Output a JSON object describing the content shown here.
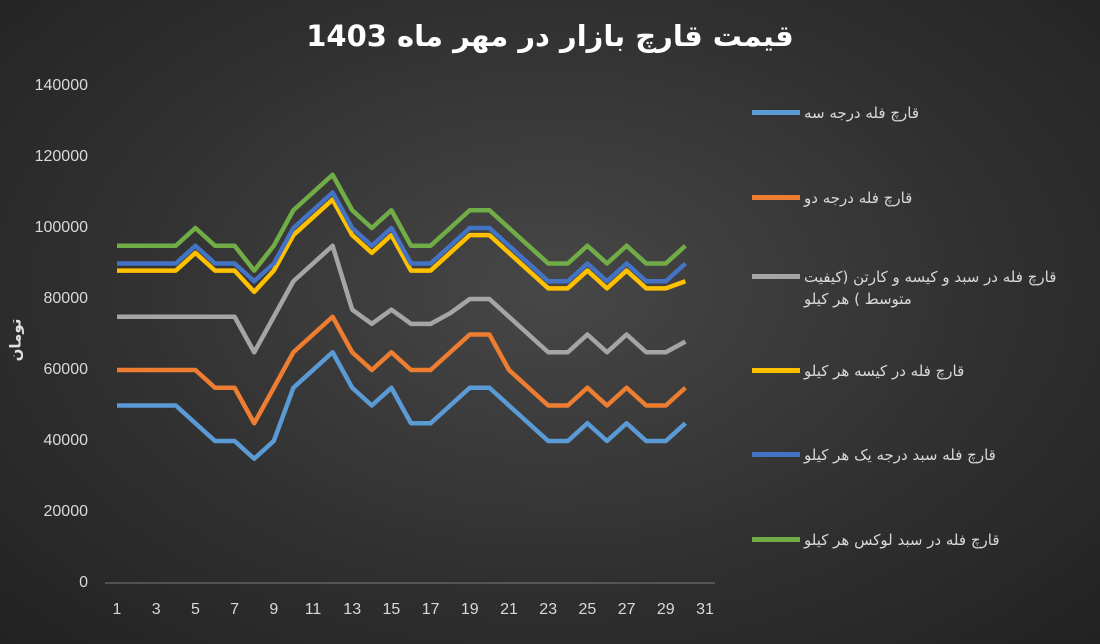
{
  "chart_data": {
    "type": "line",
    "title": "قیمت قارچ بازار در مهر ماه 1403",
    "y_label": "تومان",
    "grid": false,
    "legend_position": "right",
    "x": [
      1,
      2,
      3,
      4,
      5,
      6,
      7,
      8,
      9,
      10,
      11,
      12,
      13,
      14,
      15,
      16,
      17,
      18,
      19,
      20,
      21,
      22,
      23,
      24,
      25,
      26,
      27,
      28,
      29,
      30
    ],
    "xlim": [
      1,
      31
    ],
    "xticks": [
      1,
      3,
      5,
      7,
      9,
      11,
      13,
      15,
      17,
      19,
      21,
      23,
      25,
      27,
      29,
      31
    ],
    "ylim": [
      0,
      140000
    ],
    "yticks": [
      0,
      20000,
      40000,
      60000,
      80000,
      100000,
      120000,
      140000
    ],
    "series": [
      {
        "name": "قارچ فله درجه سه",
        "color": "#5b9bd5",
        "values": [
          50000,
          50000,
          50000,
          50000,
          45000,
          40000,
          40000,
          35000,
          40000,
          55000,
          60000,
          65000,
          55000,
          50000,
          55000,
          45000,
          45000,
          50000,
          55000,
          55000,
          50000,
          45000,
          40000,
          40000,
          45000,
          40000,
          45000,
          40000,
          40000,
          45000
        ]
      },
      {
        "name": "قارچ فله درجه دو",
        "color": "#ed7d31",
        "values": [
          60000,
          60000,
          60000,
          60000,
          60000,
          55000,
          55000,
          45000,
          55000,
          65000,
          70000,
          75000,
          65000,
          60000,
          65000,
          60000,
          60000,
          65000,
          70000,
          70000,
          60000,
          55000,
          50000,
          50000,
          55000,
          50000,
          55000,
          50000,
          50000,
          55000
        ]
      },
      {
        "name": "قارچ فله در سبد و کیسه و کارتن (کیفیت متوسط ) هر کیلو",
        "color": "#a5a5a5",
        "values": [
          75000,
          75000,
          75000,
          75000,
          75000,
          75000,
          75000,
          65000,
          75000,
          85000,
          90000,
          95000,
          77000,
          73000,
          77000,
          73000,
          73000,
          76000,
          80000,
          80000,
          75000,
          70000,
          65000,
          65000,
          70000,
          65000,
          70000,
          65000,
          65000,
          68000
        ]
      },
      {
        "name": "قارچ فله در کیسه هر کیلو",
        "color": "#ffc000",
        "values": [
          88000,
          88000,
          88000,
          88000,
          93000,
          88000,
          88000,
          82000,
          88000,
          98000,
          103000,
          108000,
          98000,
          93000,
          98000,
          88000,
          88000,
          93000,
          98000,
          98000,
          93000,
          88000,
          83000,
          83000,
          88000,
          83000,
          88000,
          83000,
          83000,
          85000
        ]
      },
      {
        "name": "قارچ فله سبد درجه یک هر کیلو",
        "color": "#4472c4",
        "values": [
          90000,
          90000,
          90000,
          90000,
          95000,
          90000,
          90000,
          85000,
          90000,
          100000,
          105000,
          110000,
          100000,
          95000,
          100000,
          90000,
          90000,
          95000,
          100000,
          100000,
          95000,
          90000,
          85000,
          85000,
          90000,
          85000,
          90000,
          85000,
          85000,
          90000
        ]
      },
      {
        "name": "قارچ فله در سبد لوکس هر کیلو",
        "color": "#70ad47",
        "values": [
          95000,
          95000,
          95000,
          95000,
          100000,
          95000,
          95000,
          88000,
          95000,
          105000,
          110000,
          115000,
          105000,
          100000,
          105000,
          95000,
          95000,
          100000,
          105000,
          105000,
          100000,
          95000,
          90000,
          90000,
          95000,
          90000,
          95000,
          90000,
          90000,
          95000
        ]
      }
    ]
  }
}
